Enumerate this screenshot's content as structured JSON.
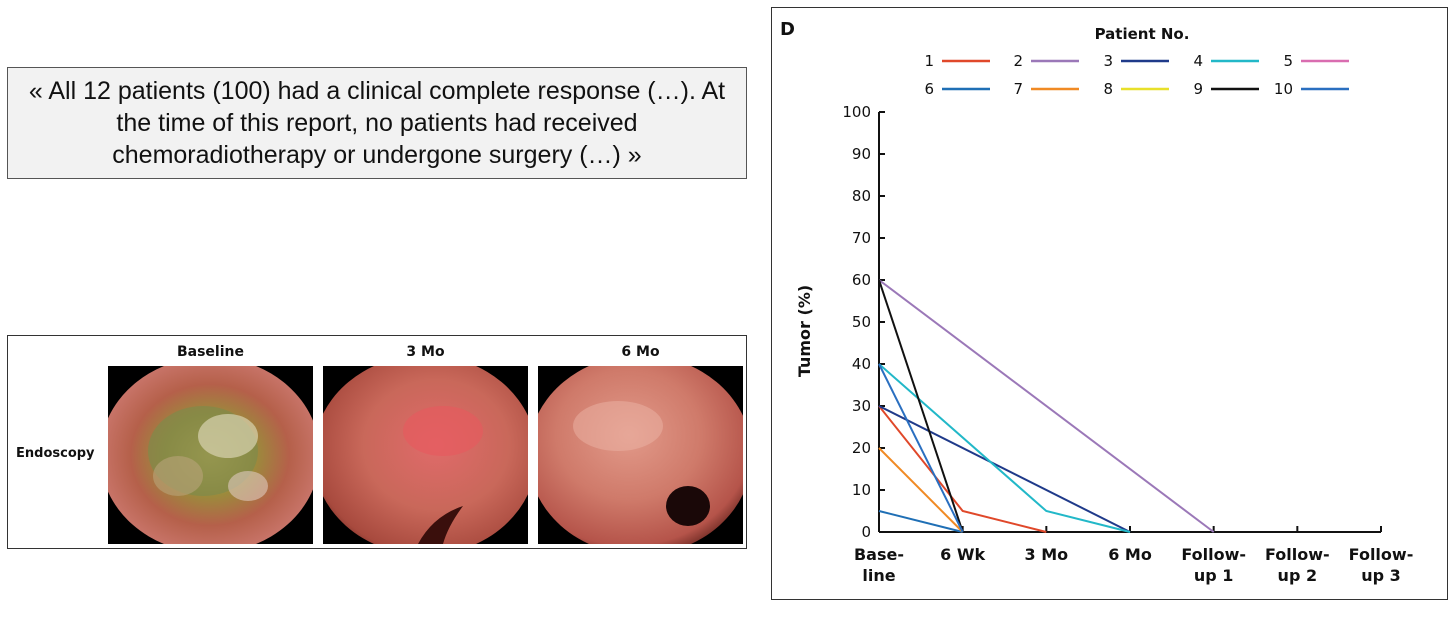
{
  "quote": {
    "text": "« All 12 patients (100) had a clinical complete response (…). At the time of this report, no patients had received chemoradiotherapy or undergone surgery (…) »"
  },
  "endoscopy": {
    "row_label": "Endoscopy",
    "columns": [
      "Baseline",
      "3 Mo",
      "6 Mo"
    ]
  },
  "colors": {
    "p1": "#e0482a",
    "p2": "#9b78b8",
    "p3": "#1f3a8a",
    "p4": "#22b8c8",
    "p5": "#d96db0",
    "p6": "#1f6fb5",
    "p7": "#f08a24",
    "p8": "#e8e02a",
    "p9": "#111111",
    "p10": "#2a6fc0"
  },
  "chart_data": {
    "type": "line",
    "panel_label": "D",
    "legend_title": "Patient No.",
    "ylabel": "Tumor (%)",
    "xlabel": "",
    "ylim": [
      0,
      100
    ],
    "yticks": [
      0,
      10,
      20,
      30,
      40,
      50,
      60,
      70,
      80,
      90,
      100
    ],
    "categories": [
      [
        "Base-",
        "line"
      ],
      [
        "6 Wk"
      ],
      [
        "3 Mo"
      ],
      [
        "6 Mo"
      ],
      [
        "Follow-",
        "up 1"
      ],
      [
        "Follow-",
        "up 2"
      ],
      [
        "Follow-",
        "up 3"
      ]
    ],
    "series": [
      {
        "name": "1",
        "color_key": "p1",
        "points": [
          [
            0,
            30
          ],
          [
            1,
            5
          ],
          [
            2,
            0
          ]
        ]
      },
      {
        "name": "2",
        "color_key": "p2",
        "points": [
          [
            0,
            60
          ],
          [
            4,
            0
          ]
        ]
      },
      {
        "name": "3",
        "color_key": "p3",
        "points": [
          [
            0,
            30
          ],
          [
            3,
            0
          ]
        ]
      },
      {
        "name": "4",
        "color_key": "p4",
        "points": [
          [
            0,
            40
          ],
          [
            2,
            5
          ],
          [
            3,
            0
          ]
        ]
      },
      {
        "name": "5",
        "color_key": "p5",
        "points": []
      },
      {
        "name": "6",
        "color_key": "p6",
        "points": [
          [
            0,
            5
          ],
          [
            1,
            0
          ]
        ]
      },
      {
        "name": "7",
        "color_key": "p7",
        "points": [
          [
            0,
            20
          ],
          [
            1,
            0
          ]
        ]
      },
      {
        "name": "8",
        "color_key": "p8",
        "points": []
      },
      {
        "name": "9",
        "color_key": "p9",
        "points": [
          [
            0,
            60
          ],
          [
            1,
            0
          ]
        ]
      },
      {
        "name": "10",
        "color_key": "p10",
        "points": [
          [
            0,
            40
          ],
          [
            1,
            0
          ]
        ]
      }
    ],
    "baseline_series": {
      "to_index": 6,
      "color": "#111111"
    }
  }
}
